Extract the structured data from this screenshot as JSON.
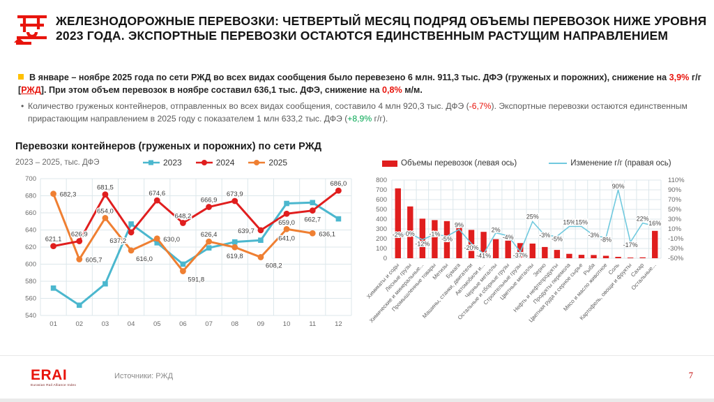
{
  "colors": {
    "red": "#E01E1E",
    "teal": "#4BB7CE",
    "orange": "#EF7F32",
    "lightblue": "#70C9DE",
    "green": "#00A650",
    "yellow": "#FFC000",
    "grid": "#DCE7EB",
    "axis_text": "#6A6A6A",
    "value_label": "#3C3C3C",
    "accent_logo": "#E8140C"
  },
  "header": {
    "title": "ЖЕЛЕЗНОДОРОЖНЫЕ ПЕРЕВОЗКИ: ЧЕТВЕРТЫЙ МЕСЯЦ ПОДРЯД ОБЪЕМЫ ПЕРЕВОЗОК НИЖЕ УРОВНЯ 2023 ГОДА. ЭКСПОРТНЫЕ ПЕРЕВОЗКИ ОСТАЮТСЯ ЕДИНСТВЕННЫМ РАСТУЩИМ НАПРАВЛЕНИЕМ"
  },
  "bullets": {
    "first": [
      {
        "t": "В январе – ноябре 2025 года по сети РЖД во всех видах сообщения было перевезено 6 млн. 911,3 тыс. ДФЭ (груженых и порожних), снижение на ",
        "c": "d"
      },
      {
        "t": "3,9%",
        "c": "r"
      },
      {
        "t": " г/г [",
        "c": "d"
      },
      {
        "t": "РЖД",
        "c": "link"
      },
      {
        "t": "]. При этом объем перевозок в ноябре составил 636,1 тыс. ДФЭ, снижение на ",
        "c": "d"
      },
      {
        "t": "0,8%",
        "c": "r"
      },
      {
        "t": " м/м.",
        "c": "d"
      }
    ],
    "second": [
      {
        "t": "Количество груженых контейнеров, отправленных во всех видах сообщения, составило 4 млн 920,3 тыс. ДФЭ (",
        "c": "d"
      },
      {
        "t": "-6,7%",
        "c": "r"
      },
      {
        "t": "). Экспортные перевозки остаются единственным прирастающим направлением в 2025 году с показателем 1 млн 633,2 тыс. ДФЭ (",
        "c": "d"
      },
      {
        "t": "+8,9%",
        "c": "g"
      },
      {
        "t": " г/г).",
        "c": "d"
      }
    ]
  },
  "chart_data": [
    {
      "type": "line",
      "title": "Перевозки контейнеров (груженых и порожних) по сети РЖД",
      "subtitle": "2023 – 2025, тыс. ДФЭ",
      "categories": [
        "01",
        "02",
        "03",
        "04",
        "05",
        "06",
        "07",
        "08",
        "09",
        "10",
        "11",
        "12"
      ],
      "ylim": [
        540,
        700
      ],
      "ytick_step": 20,
      "grid": true,
      "legend_position": "top",
      "series": [
        {
          "name": "2023",
          "color": "#4BB7CE",
          "marker": "square",
          "values": [
            572,
            552,
            577,
            647,
            625,
            600,
            619,
            626,
            628,
            671,
            672,
            653
          ],
          "labels": null,
          "label_pos": null
        },
        {
          "name": "2025",
          "color": "#EF7F32",
          "marker": "circle",
          "values": [
            682.3,
            605.7,
            654.0,
            616.0,
            630.0,
            591.8,
            626.4,
            619.8,
            608.2,
            641.0,
            636.1,
            null
          ],
          "labels": [
            "682,3",
            "605,7",
            "654,0",
            "616,0",
            "630,0",
            "591,8",
            "626,4",
            "619,8",
            "608,2",
            "641,0",
            "636,1",
            null
          ],
          "label_pos": [
            "r",
            "r",
            "a",
            "br",
            "r",
            "br",
            "a",
            "b",
            "br",
            "b",
            "r",
            null
          ]
        },
        {
          "name": "2024",
          "color": "#E01E1E",
          "marker": "circle",
          "values": [
            621.1,
            626.9,
            681.5,
            637.2,
            674.6,
            648.2,
            666.9,
            673.9,
            639.7,
            659.0,
            662.7,
            686.0
          ],
          "labels": [
            "621,1",
            "626,9",
            "681,5",
            "637,2",
            "674,6",
            "648,2",
            "666,9",
            "673,9",
            "639,7",
            "659,0",
            "662,7",
            "686,0"
          ],
          "label_pos": [
            "a",
            "a",
            "a",
            "bl",
            "a",
            "a",
            "a",
            "a",
            "l",
            "b",
            "b",
            "a"
          ]
        }
      ],
      "legend_order": [
        "2023",
        "2024",
        "2025"
      ]
    },
    {
      "type": "bar",
      "legend": [
        "Объемы перевозок (левая ось)",
        "Изменение г/г (правая ось)"
      ],
      "categories": [
        "Химикаты и соды",
        "Лесные грузы",
        "Химические и минеральные...",
        "Промышленные товары",
        "Метизы",
        "Бумага",
        "Машины, станки, двигатели",
        "Автомобили и...",
        "Черные металлы",
        "Остальные и сборные грузы",
        "Строительные грузы",
        "Цветные металлы",
        "Зерно",
        "Нефть и нефтепродукты",
        "Продукты перемола",
        "Цветная руда и серное сырье",
        "Рыба",
        "Мясо и масло животное",
        "Соль",
        "Картофель, овощи и фрукты",
        "Сахар",
        "Остальные..."
      ],
      "bars": [
        715,
        530,
        405,
        390,
        380,
        350,
        290,
        270,
        195,
        180,
        155,
        150,
        115,
        85,
        45,
        35,
        33,
        25,
        14,
        7,
        9,
        280
      ],
      "pct": [
        -2,
        0,
        -12,
        -1,
        -5,
        9,
        -20,
        -41,
        2,
        -4,
        -37,
        25,
        -3,
        -5,
        15,
        15,
        -3,
        -8,
        90,
        -17,
        22,
        16
      ],
      "pct_labels": [
        "-2%",
        "0%",
        "-12%",
        "-1%",
        "-5%",
        "9%",
        "-20%",
        "-41%",
        "2%",
        "-4%",
        "-37%",
        "25%",
        "-3%",
        "-5%",
        "15%",
        "15%",
        "-3%",
        "-8%",
        "90%",
        "-17%",
        "22%",
        "16%"
      ],
      "label_dy": [
        3,
        3,
        9,
        3,
        7,
        -3,
        9,
        6,
        -1,
        5,
        8,
        -4,
        3,
        7,
        -3,
        -3,
        3,
        6,
        -2,
        7,
        -3,
        -1
      ],
      "left_ylim": [
        0,
        800
      ],
      "left_tick_step": 100,
      "right_ylim": [
        -50,
        110
      ],
      "right_tick_step": 20,
      "grid": true
    }
  ],
  "footer": {
    "logo": "ERAI",
    "logo_sub": "Eurasian Rail Alliance Index",
    "sources": "Источники: РЖД",
    "page": "7"
  }
}
